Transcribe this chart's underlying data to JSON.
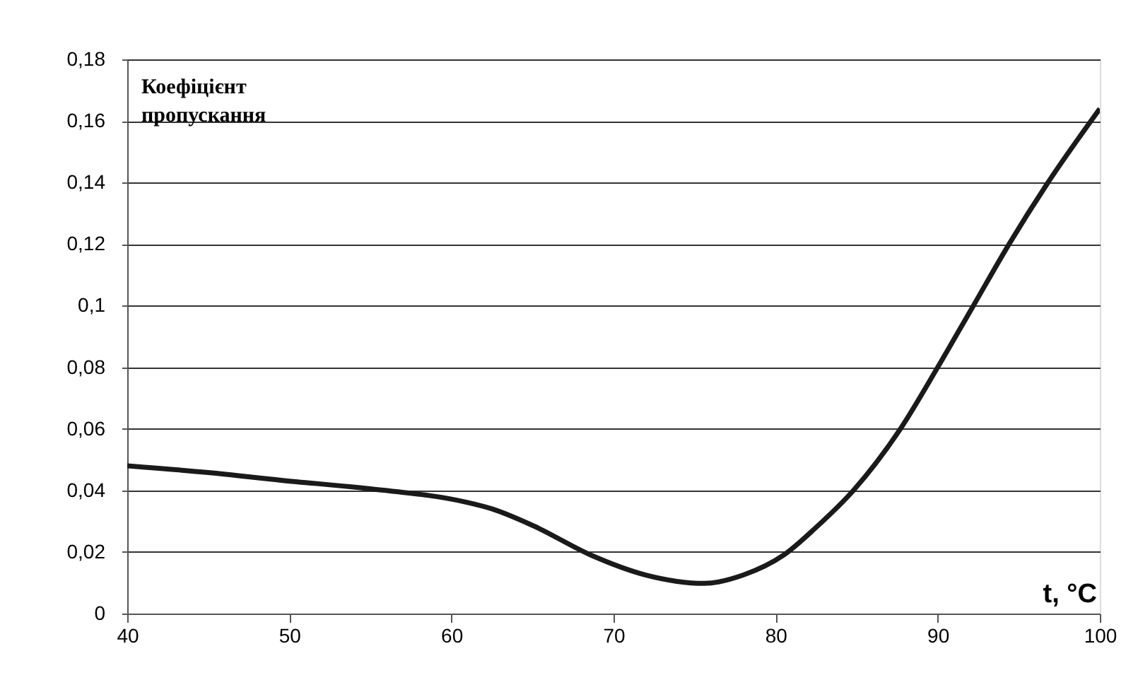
{
  "chart_data": {
    "type": "line",
    "ylabel": "Коефіцієнт пропускання",
    "xlabel": "t, °C",
    "x": [
      40,
      45,
      49.5,
      55,
      60.8,
      62.5,
      65.1,
      68.6,
      72,
      75.6,
      78,
      80.5,
      82.5,
      84.8,
      87.7,
      90,
      92.2,
      94.4,
      96.8,
      100
    ],
    "series": [
      {
        "color": "#1a1a1a",
        "values": [
          0.048,
          0.0458,
          0.0433,
          0.0405,
          0.0363,
          0.034,
          0.0284,
          0.019,
          0.0125,
          0.0098,
          0.0125,
          0.019,
          0.028,
          0.04,
          0.06,
          0.08,
          0.1,
          0.12,
          0.14,
          0.164
        ]
      }
    ],
    "xlim": [
      40,
      100
    ],
    "xticks": [
      40,
      50,
      60,
      70,
      80,
      90,
      100
    ],
    "ylim": [
      0,
      0.18
    ],
    "yticks": [
      {
        "value": 0,
        "label": "0"
      },
      {
        "value": 0.02,
        "label": "0,02"
      },
      {
        "value": 0.04,
        "label": "0,04"
      },
      {
        "value": 0.06,
        "label": "0,06"
      },
      {
        "value": 0.08,
        "label": "0,08"
      },
      {
        "value": 0.1,
        "label": "0,1"
      },
      {
        "value": 0.12,
        "label": "0,12"
      },
      {
        "value": 0.14,
        "label": "0,14"
      },
      {
        "value": 0.16,
        "label": "0,16"
      },
      {
        "value": 0.18,
        "label": "0,18"
      }
    ],
    "grid": "y",
    "marker": "none",
    "line_style": "solid"
  }
}
